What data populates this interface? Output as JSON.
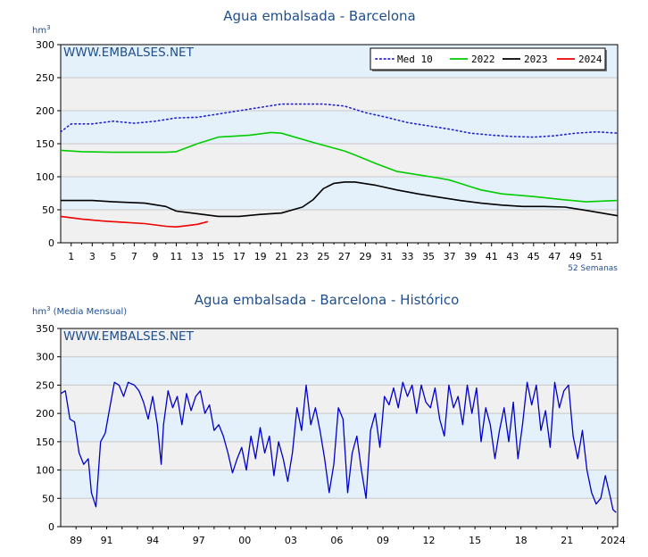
{
  "chart_data": [
    {
      "type": "line",
      "title": "Agua embalsada - Barcelona",
      "ylabel": "hm",
      "ylabel_sup": "3",
      "watermark": "WWW.EMBALSES.NET",
      "xnote": "52 Semanas",
      "ylim": [
        0,
        300
      ],
      "yticks": [
        0,
        50,
        100,
        150,
        200,
        250,
        300
      ],
      "xlim": [
        0,
        53
      ],
      "xticks": [
        1,
        3,
        5,
        7,
        9,
        11,
        13,
        15,
        17,
        19,
        21,
        23,
        25,
        27,
        29,
        31,
        33,
        35,
        37,
        39,
        41,
        43,
        45,
        47,
        49,
        51
      ],
      "legend_position": "top-right",
      "band_colors": [
        "#f0f0f0",
        "#e4f1fb"
      ],
      "series": [
        {
          "name": "Med 10",
          "color": "#2222cc",
          "style": "dotted",
          "x": [
            0,
            1,
            3,
            5,
            7,
            9,
            11,
            13,
            15,
            17,
            19,
            21,
            23,
            25,
            27,
            29,
            31,
            33,
            35,
            37,
            39,
            41,
            43,
            45,
            47,
            49,
            51,
            53
          ],
          "values": [
            168,
            180,
            180,
            184,
            181,
            184,
            189,
            190,
            195,
            200,
            205,
            210,
            210,
            210,
            207,
            197,
            190,
            182,
            177,
            172,
            166,
            163,
            161,
            160,
            162,
            166,
            168,
            166
          ]
        },
        {
          "name": "2022",
          "color": "#00cc00",
          "style": "solid",
          "x": [
            0,
            2,
            5,
            8,
            10,
            11,
            13,
            15,
            18,
            20,
            21,
            24,
            27,
            28,
            30,
            32,
            34,
            36,
            37,
            39,
            40,
            42,
            45,
            48,
            50,
            53
          ],
          "values": [
            140,
            138,
            137,
            137,
            137,
            138,
            150,
            160,
            163,
            167,
            166,
            152,
            139,
            133,
            120,
            108,
            103,
            98,
            95,
            85,
            80,
            74,
            70,
            65,
            62,
            64
          ]
        },
        {
          "name": "2023",
          "color": "#000000",
          "style": "solid",
          "x": [
            0,
            3,
            5,
            8,
            10,
            11,
            13,
            15,
            17,
            19,
            21,
            23,
            24,
            25,
            26,
            27,
            28,
            30,
            32,
            34,
            36,
            38,
            40,
            42,
            44,
            46,
            48,
            50,
            53
          ],
          "values": [
            64,
            64,
            62,
            60,
            55,
            48,
            44,
            40,
            40,
            43,
            45,
            54,
            65,
            82,
            90,
            92,
            92,
            87,
            80,
            74,
            69,
            64,
            60,
            57,
            55,
            55,
            54,
            49,
            41
          ]
        },
        {
          "name": "2024",
          "color": "#ee0000",
          "style": "solid",
          "x": [
            0,
            2,
            4,
            6,
            8,
            9,
            10,
            11,
            12,
            13,
            14
          ],
          "values": [
            40,
            36,
            33,
            31,
            29,
            27,
            25,
            24,
            26,
            28,
            32
          ]
        }
      ]
    },
    {
      "type": "line",
      "title": "Agua embalsada - Barcelona - Histórico",
      "ylabel": "hm",
      "ylabel_sup": "3",
      "ylabel_note": "(Media Mensual)",
      "watermark": "WWW.EMBALSES.NET",
      "ylim": [
        0,
        350
      ],
      "yticks": [
        0,
        50,
        100,
        150,
        200,
        250,
        300,
        350
      ],
      "xlim": [
        1988.0,
        2024.3
      ],
      "xtick_labels": [
        {
          "label": "89",
          "x": 1989.0
        },
        {
          "label": "91",
          "x": 1991.0
        },
        {
          "label": "94",
          "x": 1994.0
        },
        {
          "label": "97",
          "x": 1997.0
        },
        {
          "label": "00",
          "x": 2000.0
        },
        {
          "label": "03",
          "x": 2003.0
        },
        {
          "label": "06",
          "x": 2006.0
        },
        {
          "label": "09",
          "x": 2009.0
        },
        {
          "label": "12",
          "x": 2012.0
        },
        {
          "label": "15",
          "x": 2015.0
        },
        {
          "label": "18",
          "x": 2018.0
        },
        {
          "label": "21",
          "x": 2021.0
        },
        {
          "label": "2024",
          "x": 2024.0
        }
      ],
      "band_colors": [
        "#f0f0f0",
        "#e4f1fb"
      ],
      "series": [
        {
          "color": "#0000cc",
          "style": "solid",
          "x": [
            1988.0,
            1988.3,
            1988.6,
            1988.9,
            1989.2,
            1989.5,
            1989.8,
            1990.0,
            1990.3,
            1990.6,
            1990.9,
            1991.2,
            1991.5,
            1991.8,
            1992.1,
            1992.4,
            1992.8,
            1993.1,
            1993.4,
            1993.7,
            1994.0,
            1994.3,
            1994.55,
            1994.7,
            1995.0,
            1995.3,
            1995.6,
            1995.9,
            1996.2,
            1996.5,
            1996.8,
            1997.1,
            1997.4,
            1997.7,
            1998.0,
            1998.3,
            1998.6,
            1998.9,
            1999.2,
            1999.5,
            1999.8,
            2000.1,
            2000.4,
            2000.7,
            2001.0,
            2001.3,
            2001.6,
            2001.9,
            2002.2,
            2002.5,
            2002.8,
            2003.1,
            2003.4,
            2003.7,
            2004.0,
            2004.3,
            2004.6,
            2004.9,
            2005.2,
            2005.5,
            2005.8,
            2006.1,
            2006.4,
            2006.7,
            2007.0,
            2007.3,
            2007.6,
            2007.9,
            2008.2,
            2008.5,
            2008.8,
            2009.1,
            2009.4,
            2009.7,
            2010.0,
            2010.3,
            2010.6,
            2010.9,
            2011.2,
            2011.5,
            2011.8,
            2012.1,
            2012.4,
            2012.7,
            2013.0,
            2013.3,
            2013.6,
            2013.9,
            2014.2,
            2014.5,
            2014.8,
            2015.1,
            2015.4,
            2015.7,
            2016.0,
            2016.3,
            2016.6,
            2016.9,
            2017.2,
            2017.5,
            2017.8,
            2018.1,
            2018.4,
            2018.7,
            2019.0,
            2019.3,
            2019.6,
            2019.9,
            2020.2,
            2020.5,
            2020.8,
            2021.1,
            2021.4,
            2021.7,
            2022.0,
            2022.3,
            2022.6,
            2022.9,
            2023.2,
            2023.5,
            2023.8,
            2024.0,
            2024.2
          ],
          "values": [
            235,
            240,
            190,
            185,
            130,
            110,
            120,
            60,
            35,
            150,
            165,
            210,
            255,
            250,
            230,
            255,
            250,
            240,
            220,
            190,
            230,
            180,
            110,
            180,
            240,
            210,
            230,
            180,
            235,
            205,
            230,
            240,
            200,
            215,
            170,
            180,
            160,
            130,
            95,
            120,
            140,
            100,
            160,
            120,
            175,
            130,
            160,
            90,
            150,
            120,
            80,
            130,
            210,
            170,
            250,
            180,
            210,
            170,
            120,
            60,
            110,
            210,
            190,
            60,
            130,
            160,
            100,
            50,
            170,
            200,
            140,
            230,
            215,
            245,
            210,
            255,
            230,
            250,
            200,
            250,
            220,
            210,
            245,
            190,
            160,
            250,
            210,
            230,
            180,
            250,
            200,
            245,
            150,
            210,
            180,
            120,
            170,
            210,
            150,
            220,
            120,
            180,
            255,
            215,
            250,
            170,
            205,
            140,
            255,
            210,
            240,
            250,
            160,
            120,
            170,
            100,
            60,
            40,
            50,
            90,
            55,
            30,
            25
          ]
        }
      ]
    }
  ]
}
